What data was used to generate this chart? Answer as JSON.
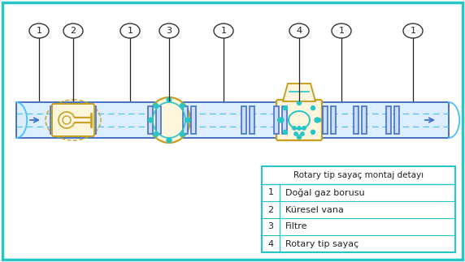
{
  "bg_color": "#ffffff",
  "border_color": "#26c6c6",
  "pipe_color": "#4472c4",
  "pipe_dashed_color": "#4fc3f7",
  "pipe_fill": "#ddeeff",
  "valve_color": "#c8a020",
  "filter_color": "#c8a020",
  "meter_color": "#c8a020",
  "flange_color": "#4472c4",
  "flange_fill": "#ccddf5",
  "dot_color": "#26c6c6",
  "title": "Rotary tip sayaç montaj detayı",
  "legend_items": [
    {
      "num": "1",
      "label": "Doğal gaz borusu"
    },
    {
      "num": "2",
      "label": "Küresel vana"
    },
    {
      "num": "3",
      "label": "Filtre"
    },
    {
      "num": "4",
      "label": "Rotary tip sayaç"
    }
  ]
}
